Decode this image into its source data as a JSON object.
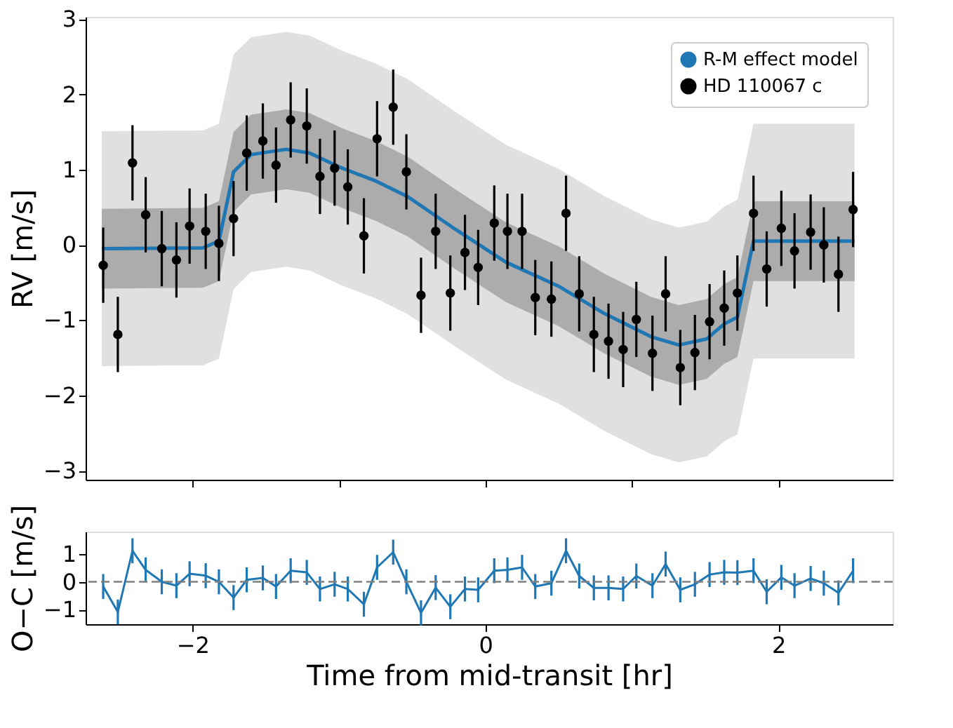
{
  "chart_data": [
    {
      "type": "scatter",
      "ylabel": "RV [m/s]",
      "xlim": [
        -2.73,
        2.78
      ],
      "ylim": [
        -3.12,
        3.03
      ],
      "xticks": [
        -2,
        -1,
        0,
        1,
        2
      ],
      "yticks": [
        -3,
        -2,
        -1,
        0,
        1,
        2,
        3
      ],
      "tick_labels": "y",
      "legend": "top right",
      "grid": false,
      "series": [
        {
          "type": "area",
          "color": "#e0e0e0",
          "x": [
            -2.62,
            -1.93,
            -1.82,
            -1.72,
            -1.6,
            -1.36,
            -1.2,
            -0.98,
            -0.75,
            -0.53,
            -0.2,
            0.14,
            0.5,
            0.81,
            1.13,
            1.32,
            1.51,
            1.63,
            1.72,
            1.83,
            2.52
          ],
          "values": [
            null,
            null,
            null,
            null,
            null,
            null,
            null,
            null,
            null,
            null,
            null,
            null,
            null,
            null,
            null,
            null,
            null,
            null,
            null,
            null,
            null
          ],
          "lower": [
            -1.61,
            -1.6,
            -1.51,
            -0.59,
            -0.36,
            -0.29,
            -0.34,
            -0.54,
            -0.71,
            -0.92,
            -1.36,
            -1.79,
            -2.11,
            -2.47,
            -2.78,
            -2.89,
            -2.81,
            -2.61,
            -2.52,
            -1.51,
            -1.51
          ],
          "upper": [
            1.51,
            1.52,
            1.61,
            2.53,
            2.76,
            2.83,
            2.78,
            2.58,
            2.41,
            2.2,
            1.76,
            1.33,
            1.01,
            0.65,
            0.34,
            0.23,
            0.31,
            0.51,
            0.6,
            1.61,
            1.61
          ]
        },
        {
          "type": "area",
          "color": "#acacac",
          "x": [
            -2.62,
            -1.93,
            -1.82,
            -1.72,
            -1.6,
            -1.36,
            -1.2,
            -0.98,
            -0.75,
            -0.53,
            -0.2,
            0.14,
            0.5,
            0.81,
            1.13,
            1.32,
            1.51,
            1.63,
            1.72,
            1.83,
            2.52
          ],
          "values": [
            null,
            null,
            null,
            null,
            null,
            null,
            null,
            null,
            null,
            null,
            null,
            null,
            null,
            null,
            null,
            null,
            null,
            null,
            null,
            null,
            null
          ],
          "lower": [
            -0.58,
            -0.57,
            -0.48,
            0.44,
            0.67,
            0.74,
            0.69,
            0.49,
            0.32,
            0.11,
            -0.33,
            -0.76,
            -1.08,
            -1.44,
            -1.75,
            -1.86,
            -1.78,
            -1.58,
            -1.49,
            -0.48,
            -0.48
          ],
          "upper": [
            0.48,
            0.49,
            0.58,
            1.5,
            1.73,
            1.8,
            1.75,
            1.55,
            1.38,
            1.17,
            0.73,
            0.3,
            -0.02,
            -0.38,
            -0.69,
            -0.8,
            -0.72,
            -0.52,
            -0.43,
            0.58,
            0.58
          ]
        },
        {
          "name": "R-M effect model",
          "type": "line",
          "color": "#1f77b4",
          "x": [
            -2.62,
            -1.93,
            -1.82,
            -1.72,
            -1.6,
            -1.36,
            -1.2,
            -0.98,
            -0.75,
            -0.53,
            -0.2,
            0.14,
            0.5,
            0.81,
            1.13,
            1.32,
            1.51,
            1.63,
            1.72,
            1.83,
            2.52
          ],
          "values": [
            -0.05,
            -0.04,
            0.05,
            0.97,
            1.2,
            1.27,
            1.22,
            1.02,
            0.85,
            0.64,
            0.2,
            -0.23,
            -0.55,
            -0.91,
            -1.22,
            -1.33,
            -1.25,
            -1.05,
            -0.96,
            0.05,
            0.05
          ]
        },
        {
          "name": "HD 110067 c",
          "color": "#000000",
          "marker": "circle",
          "x": [
            -2.61,
            -2.51,
            -2.41,
            -2.32,
            -2.21,
            -2.11,
            -2.02,
            -1.91,
            -1.82,
            -1.72,
            -1.63,
            -1.52,
            -1.43,
            -1.33,
            -1.22,
            -1.13,
            -1.03,
            -0.94,
            -0.83,
            -0.74,
            -0.63,
            -0.54,
            -0.44,
            -0.34,
            -0.24,
            -0.14,
            -0.05,
            0.06,
            0.15,
            0.25,
            0.34,
            0.45,
            0.55,
            0.64,
            0.74,
            0.84,
            0.94,
            1.03,
            1.14,
            1.23,
            1.33,
            1.43,
            1.53,
            1.63,
            1.72,
            1.83,
            1.92,
            2.02,
            2.11,
            2.22,
            2.31,
            2.41,
            2.51
          ],
          "values": [
            -0.27,
            -1.19,
            1.09,
            0.4,
            -0.05,
            -0.2,
            0.25,
            0.18,
            0.02,
            0.35,
            1.22,
            1.38,
            1.06,
            1.66,
            1.58,
            0.91,
            1.02,
            0.77,
            0.12,
            1.41,
            1.83,
            0.97,
            -0.67,
            0.18,
            -0.64,
            -0.1,
            -0.3,
            0.29,
            0.18,
            0.18,
            -0.7,
            -0.72,
            0.42,
            -0.65,
            -1.19,
            -1.28,
            -1.39,
            -0.99,
            -1.44,
            -0.65,
            -1.63,
            -1.43,
            -1.02,
            -0.84,
            -0.64,
            0.42,
            -0.32,
            0.22,
            -0.08,
            0.17,
            0.0,
            -0.39,
            0.47
          ],
          "errors": [
            0.5,
            0.5,
            0.5,
            0.5,
            0.5,
            0.5,
            0.5,
            0.5,
            0.5,
            0.5,
            0.5,
            0.5,
            0.5,
            0.5,
            0.5,
            0.5,
            0.5,
            0.5,
            0.5,
            0.5,
            0.5,
            0.5,
            0.5,
            0.5,
            0.5,
            0.5,
            0.5,
            0.5,
            0.5,
            0.5,
            0.5,
            0.5,
            0.5,
            0.5,
            0.5,
            0.5,
            0.5,
            0.5,
            0.5,
            0.5,
            0.5,
            0.5,
            0.5,
            0.5,
            0.5,
            0.5,
            0.5,
            0.5,
            0.5,
            0.5,
            0.5,
            0.5,
            0.5
          ]
        }
      ]
    },
    {
      "type": "line",
      "xlabel": "Time from mid-transit [hr]",
      "ylabel": "O−C [m/s]",
      "xlim": [
        -2.73,
        2.78
      ],
      "ylim": [
        -1.53,
        1.81
      ],
      "xticks": [
        -2,
        0,
        2
      ],
      "yticks": [
        -1,
        0,
        1
      ],
      "grid": false,
      "marker": "none",
      "ref_lines": [
        {
          "axis": "y",
          "value": 0,
          "color": "#808080",
          "line_style": "dashed"
        }
      ],
      "series": [
        {
          "color": "#1f77b4",
          "x": [
            -2.61,
            -2.51,
            -2.41,
            -2.32,
            -2.21,
            -2.11,
            -2.02,
            -1.91,
            -1.82,
            -1.72,
            -1.63,
            -1.52,
            -1.43,
            -1.33,
            -1.22,
            -1.13,
            -1.03,
            -0.94,
            -0.83,
            -0.74,
            -0.63,
            -0.54,
            -0.44,
            -0.34,
            -0.24,
            -0.14,
            -0.05,
            0.06,
            0.15,
            0.25,
            0.34,
            0.45,
            0.55,
            0.64,
            0.74,
            0.84,
            0.94,
            1.03,
            1.14,
            1.23,
            1.33,
            1.43,
            1.53,
            1.63,
            1.72,
            1.83,
            1.92,
            2.02,
            2.11,
            2.22,
            2.31,
            2.41,
            2.51
          ],
          "values": [
            -0.17,
            -1.09,
            1.12,
            0.43,
            0.0,
            -0.14,
            0.29,
            0.22,
            0.0,
            -0.57,
            0.07,
            0.14,
            -0.17,
            0.4,
            0.34,
            -0.26,
            -0.09,
            -0.26,
            -0.81,
            0.52,
            1.07,
            0.0,
            -1.12,
            -0.21,
            -0.9,
            -0.26,
            -0.29,
            0.4,
            0.43,
            0.52,
            -0.17,
            -0.05,
            1.12,
            0.21,
            -0.22,
            -0.22,
            -0.26,
            0.21,
            -0.14,
            0.64,
            -0.29,
            -0.09,
            0.26,
            0.34,
            0.33,
            0.4,
            -0.36,
            0.16,
            -0.14,
            0.12,
            -0.05,
            -0.4,
            0.4
          ],
          "errors": [
            0.45,
            0.45,
            0.45,
            0.45,
            0.45,
            0.45,
            0.45,
            0.45,
            0.45,
            0.45,
            0.45,
            0.45,
            0.45,
            0.45,
            0.45,
            0.45,
            0.45,
            0.45,
            0.45,
            0.45,
            0.45,
            0.45,
            0.45,
            0.45,
            0.45,
            0.45,
            0.45,
            0.45,
            0.45,
            0.45,
            0.45,
            0.45,
            0.45,
            0.45,
            0.45,
            0.45,
            0.45,
            0.45,
            0.45,
            0.45,
            0.45,
            0.45,
            0.45,
            0.45,
            0.45,
            0.45,
            0.45,
            0.45,
            0.45,
            0.45,
            0.45,
            0.45,
            0.45
          ]
        }
      ]
    }
  ]
}
